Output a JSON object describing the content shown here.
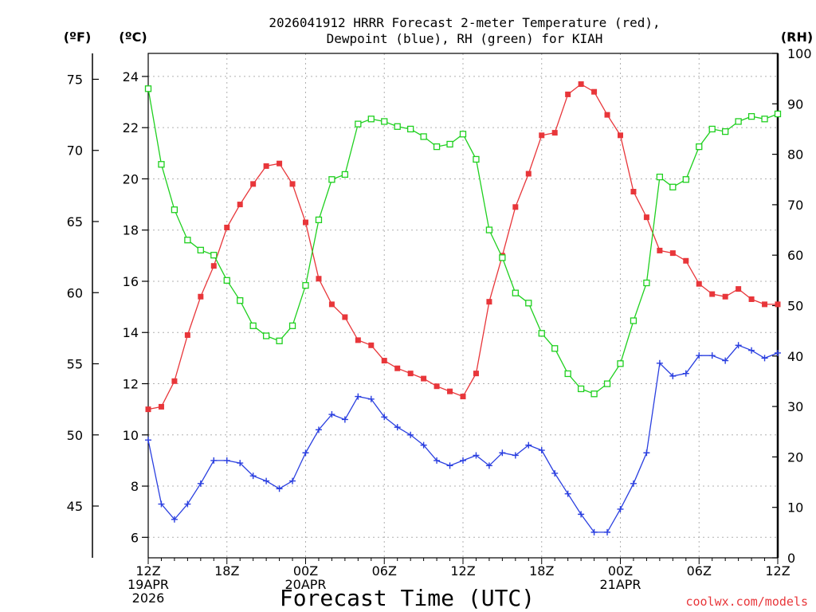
{
  "chart_data": {
    "type": "line",
    "title_line1": "2026041912 HRRR Forecast 2-meter Temperature (red),",
    "title_line2": "Dewpoint (blue), RH (green) for KIAH",
    "xlabel": "Forecast Time (UTC)",
    "credit": "coolwx.com/models",
    "units": {
      "fahrenheit": "(ºF)",
      "celsius": "(ºC)",
      "rh": "(RH)"
    },
    "x_range": [
      0,
      48
    ],
    "celsius_range": [
      5.2,
      24.9
    ],
    "rh_range": [
      0,
      100
    ],
    "x_ticks": [
      {
        "x": 0,
        "lines": [
          "12Z",
          "19APR",
          "2026"
        ]
      },
      {
        "x": 6,
        "lines": [
          "18Z"
        ]
      },
      {
        "x": 12,
        "lines": [
          "00Z",
          "20APR"
        ]
      },
      {
        "x": 18,
        "lines": [
          "06Z"
        ]
      },
      {
        "x": 24,
        "lines": [
          "12Z"
        ]
      },
      {
        "x": 30,
        "lines": [
          "18Z"
        ]
      },
      {
        "x": 36,
        "lines": [
          "00Z",
          "21APR"
        ]
      },
      {
        "x": 42,
        "lines": [
          "06Z"
        ]
      },
      {
        "x": 48,
        "lines": [
          "12Z"
        ]
      }
    ],
    "celsius_ticks": [
      6,
      8,
      10,
      12,
      14,
      16,
      18,
      20,
      22,
      24
    ],
    "fahrenheit_ticks": [
      45,
      50,
      55,
      60,
      65,
      70,
      75
    ],
    "rh_ticks": [
      0,
      10,
      20,
      30,
      40,
      50,
      60,
      70,
      80,
      90,
      100
    ],
    "series": [
      {
        "name": "Temperature",
        "color": "#e8363a",
        "marker": "filled-square",
        "axis": "celsius",
        "values": [
          11.0,
          11.1,
          12.1,
          13.9,
          15.4,
          16.6,
          18.1,
          19.0,
          19.8,
          20.5,
          20.6,
          19.8,
          18.3,
          16.1,
          15.1,
          14.6,
          13.7,
          13.5,
          12.9,
          12.6,
          12.4,
          12.2,
          11.9,
          11.7,
          11.5,
          12.4,
          15.2,
          17.0,
          18.9,
          20.2,
          21.7,
          21.8,
          23.3,
          23.7,
          23.4,
          22.5,
          21.7,
          19.5,
          18.5,
          17.2,
          17.1,
          16.8,
          15.9,
          15.5,
          15.4,
          15.7,
          15.3,
          15.1,
          15.1
        ]
      },
      {
        "name": "Dewpoint",
        "color": "#2a3fe0",
        "marker": "plus",
        "axis": "celsius",
        "values": [
          9.8,
          7.3,
          6.7,
          7.3,
          8.1,
          9.0,
          9.0,
          8.9,
          8.4,
          8.2,
          7.9,
          8.2,
          9.3,
          10.2,
          10.8,
          10.6,
          11.5,
          11.4,
          10.7,
          10.3,
          10.0,
          9.6,
          9.0,
          8.8,
          9.0,
          9.2,
          8.8,
          9.3,
          9.2,
          9.6,
          9.4,
          8.5,
          7.7,
          6.9,
          6.2,
          6.2,
          7.1,
          8.1,
          9.3,
          12.8,
          12.3,
          12.4,
          13.1,
          13.1,
          12.9,
          13.5,
          13.3,
          13.0,
          13.2
        ]
      },
      {
        "name": "RH",
        "color": "#1fd01f",
        "marker": "open-square",
        "axis": "rh",
        "values": [
          93,
          78,
          69,
          63,
          61,
          60,
          55,
          51,
          46,
          44,
          43,
          46,
          54,
          67,
          75,
          76,
          86,
          87,
          86.5,
          85.5,
          85,
          83.5,
          81.5,
          82,
          84,
          79,
          65,
          59.5,
          52.5,
          50.5,
          44.5,
          41.5,
          36.5,
          33.5,
          32.5,
          34.5,
          38.5,
          47,
          54.5,
          75.5,
          73.5,
          75,
          81.5,
          85,
          84.5,
          86.5,
          87.5,
          87,
          88
        ]
      }
    ]
  }
}
